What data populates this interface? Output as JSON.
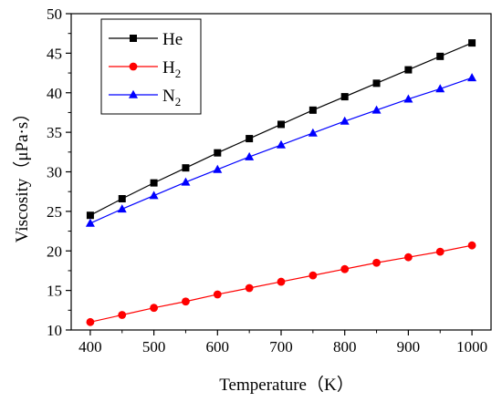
{
  "chart_data": {
    "type": "line",
    "xlabel": "Temperature（K）",
    "ylabel": "Viscosity（μPa·s）",
    "xlim": [
      370,
      1030
    ],
    "ylim": [
      10,
      50
    ],
    "x_ticks": [
      400,
      500,
      600,
      700,
      800,
      900,
      1000
    ],
    "y_ticks": [
      10,
      15,
      20,
      25,
      30,
      35,
      40,
      45,
      50
    ],
    "grid": false,
    "legend_position": "top-left",
    "x": [
      400,
      450,
      500,
      550,
      600,
      650,
      700,
      750,
      800,
      850,
      900,
      950,
      1000
    ],
    "series": [
      {
        "name": "He",
        "name_base": "He",
        "name_sub": "",
        "color": "#000000",
        "marker": "square",
        "values": [
          24.5,
          26.6,
          28.6,
          30.5,
          32.4,
          34.2,
          36.0,
          37.8,
          39.5,
          41.2,
          42.9,
          44.6,
          46.3
        ]
      },
      {
        "name": "H2",
        "name_base": "H",
        "name_sub": "2",
        "color": "#ff0000",
        "marker": "circle",
        "values": [
          11.0,
          11.9,
          12.8,
          13.6,
          14.5,
          15.3,
          16.1,
          16.9,
          17.7,
          18.5,
          19.2,
          19.9,
          20.7
        ]
      },
      {
        "name": "N2",
        "name_base": "N",
        "name_sub": "2",
        "color": "#0000ff",
        "marker": "triangle",
        "values": [
          23.5,
          25.3,
          27.0,
          28.7,
          30.3,
          31.9,
          33.4,
          34.9,
          36.4,
          37.8,
          39.2,
          40.5,
          41.9
        ]
      }
    ]
  }
}
